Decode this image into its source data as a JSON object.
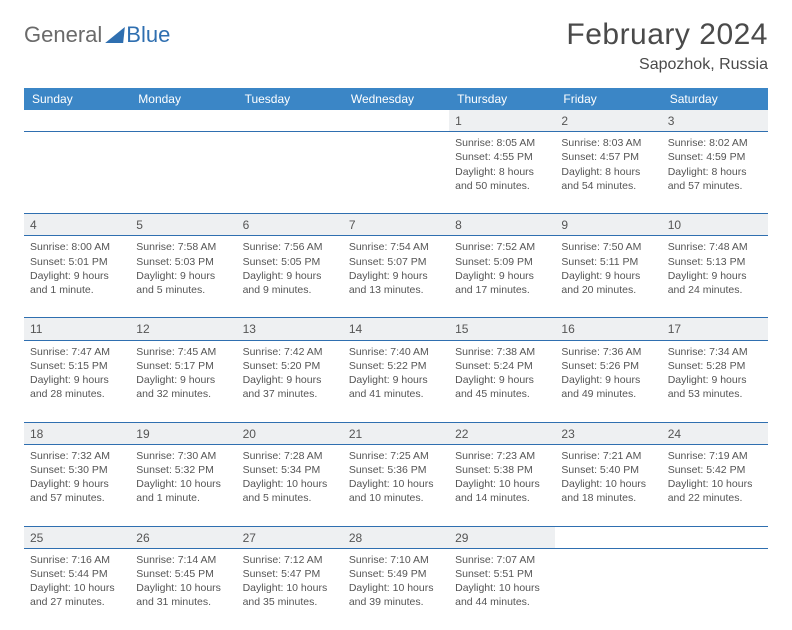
{
  "logo": {
    "part1": "General",
    "part2": "Blue"
  },
  "title": "February 2024",
  "location": "Sapozhok, Russia",
  "header_bg": "#3b86c6",
  "weekdays": [
    "Sunday",
    "Monday",
    "Tuesday",
    "Wednesday",
    "Thursday",
    "Friday",
    "Saturday"
  ],
  "weeks": [
    [
      null,
      null,
      null,
      null,
      {
        "n": "1",
        "sr": "8:05 AM",
        "ss": "4:55 PM",
        "dl": "8 hours and 50 minutes."
      },
      {
        "n": "2",
        "sr": "8:03 AM",
        "ss": "4:57 PM",
        "dl": "8 hours and 54 minutes."
      },
      {
        "n": "3",
        "sr": "8:02 AM",
        "ss": "4:59 PM",
        "dl": "8 hours and 57 minutes."
      }
    ],
    [
      {
        "n": "4",
        "sr": "8:00 AM",
        "ss": "5:01 PM",
        "dl": "9 hours and 1 minute."
      },
      {
        "n": "5",
        "sr": "7:58 AM",
        "ss": "5:03 PM",
        "dl": "9 hours and 5 minutes."
      },
      {
        "n": "6",
        "sr": "7:56 AM",
        "ss": "5:05 PM",
        "dl": "9 hours and 9 minutes."
      },
      {
        "n": "7",
        "sr": "7:54 AM",
        "ss": "5:07 PM",
        "dl": "9 hours and 13 minutes."
      },
      {
        "n": "8",
        "sr": "7:52 AM",
        "ss": "5:09 PM",
        "dl": "9 hours and 17 minutes."
      },
      {
        "n": "9",
        "sr": "7:50 AM",
        "ss": "5:11 PM",
        "dl": "9 hours and 20 minutes."
      },
      {
        "n": "10",
        "sr": "7:48 AM",
        "ss": "5:13 PM",
        "dl": "9 hours and 24 minutes."
      }
    ],
    [
      {
        "n": "11",
        "sr": "7:47 AM",
        "ss": "5:15 PM",
        "dl": "9 hours and 28 minutes."
      },
      {
        "n": "12",
        "sr": "7:45 AM",
        "ss": "5:17 PM",
        "dl": "9 hours and 32 minutes."
      },
      {
        "n": "13",
        "sr": "7:42 AM",
        "ss": "5:20 PM",
        "dl": "9 hours and 37 minutes."
      },
      {
        "n": "14",
        "sr": "7:40 AM",
        "ss": "5:22 PM",
        "dl": "9 hours and 41 minutes."
      },
      {
        "n": "15",
        "sr": "7:38 AM",
        "ss": "5:24 PM",
        "dl": "9 hours and 45 minutes."
      },
      {
        "n": "16",
        "sr": "7:36 AM",
        "ss": "5:26 PM",
        "dl": "9 hours and 49 minutes."
      },
      {
        "n": "17",
        "sr": "7:34 AM",
        "ss": "5:28 PM",
        "dl": "9 hours and 53 minutes."
      }
    ],
    [
      {
        "n": "18",
        "sr": "7:32 AM",
        "ss": "5:30 PM",
        "dl": "9 hours and 57 minutes."
      },
      {
        "n": "19",
        "sr": "7:30 AM",
        "ss": "5:32 PM",
        "dl": "10 hours and 1 minute."
      },
      {
        "n": "20",
        "sr": "7:28 AM",
        "ss": "5:34 PM",
        "dl": "10 hours and 5 minutes."
      },
      {
        "n": "21",
        "sr": "7:25 AM",
        "ss": "5:36 PM",
        "dl": "10 hours and 10 minutes."
      },
      {
        "n": "22",
        "sr": "7:23 AM",
        "ss": "5:38 PM",
        "dl": "10 hours and 14 minutes."
      },
      {
        "n": "23",
        "sr": "7:21 AM",
        "ss": "5:40 PM",
        "dl": "10 hours and 18 minutes."
      },
      {
        "n": "24",
        "sr": "7:19 AM",
        "ss": "5:42 PM",
        "dl": "10 hours and 22 minutes."
      }
    ],
    [
      {
        "n": "25",
        "sr": "7:16 AM",
        "ss": "5:44 PM",
        "dl": "10 hours and 27 minutes."
      },
      {
        "n": "26",
        "sr": "7:14 AM",
        "ss": "5:45 PM",
        "dl": "10 hours and 31 minutes."
      },
      {
        "n": "27",
        "sr": "7:12 AM",
        "ss": "5:47 PM",
        "dl": "10 hours and 35 minutes."
      },
      {
        "n": "28",
        "sr": "7:10 AM",
        "ss": "5:49 PM",
        "dl": "10 hours and 39 minutes."
      },
      {
        "n": "29",
        "sr": "7:07 AM",
        "ss": "5:51 PM",
        "dl": "10 hours and 44 minutes."
      },
      null,
      null
    ]
  ],
  "labels": {
    "sunrise": "Sunrise: ",
    "sunset": "Sunset: ",
    "daylight": "Daylight: "
  }
}
